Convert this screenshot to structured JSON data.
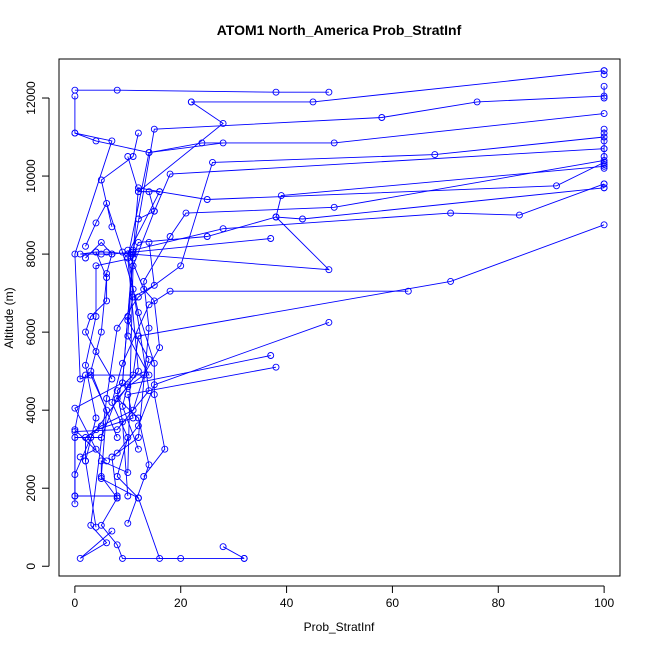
{
  "chart_data": {
    "type": "line",
    "title": "ATOM1 North_America Prob_StratInf",
    "xlabel": "Prob_StratInf",
    "ylabel": "Altitude (m)",
    "xlim": [
      -3,
      103
    ],
    "ylim": [
      -250,
      13000
    ],
    "xticks": [
      0,
      20,
      40,
      60,
      80,
      100
    ],
    "yticks": [
      0,
      2000,
      4000,
      6000,
      8000,
      10000,
      12000
    ],
    "grid": false,
    "color": "#0000ff",
    "series": [
      {
        "points": [
          [
            0,
            12200
          ],
          [
            8,
            12200
          ],
          [
            38,
            12150
          ],
          [
            48,
            12150
          ]
        ]
      },
      {
        "points": [
          [
            0,
            12050
          ],
          [
            0,
            11100
          ],
          [
            7,
            10900
          ],
          [
            0,
            8000
          ],
          [
            1,
            4800
          ],
          [
            3,
            4900
          ],
          [
            6,
            4000
          ],
          [
            5,
            2300
          ],
          [
            8,
            1750
          ],
          [
            5,
            1050
          ],
          [
            8,
            550
          ],
          [
            9,
            200
          ],
          [
            20,
            200
          ]
        ]
      },
      {
        "points": [
          [
            22,
            11900
          ],
          [
            28,
            11350
          ],
          [
            12,
            9600
          ],
          [
            16,
            9600
          ],
          [
            10,
            8000
          ],
          [
            14,
            4500
          ],
          [
            8,
            3500
          ],
          [
            0,
            3450
          ],
          [
            0,
            1800
          ],
          [
            8,
            1800
          ]
        ]
      },
      {
        "points": [
          [
            100,
            12700
          ],
          [
            45,
            11900
          ],
          [
            22,
            11900
          ]
        ]
      },
      {
        "points": [
          [
            100,
            12050
          ],
          [
            76,
            11900
          ],
          [
            58,
            11500
          ],
          [
            15,
            11200
          ],
          [
            11,
            8050
          ],
          [
            10,
            5900
          ],
          [
            14,
            4900
          ],
          [
            2,
            4900
          ],
          [
            0,
            3500
          ],
          [
            6,
            2700
          ]
        ]
      },
      {
        "points": [
          [
            100,
            11600
          ],
          [
            49,
            10850
          ],
          [
            24,
            10850
          ],
          [
            14,
            10600
          ],
          [
            10,
            7900
          ],
          [
            12,
            5000
          ],
          [
            3,
            3300
          ],
          [
            0,
            2350
          ],
          [
            0,
            1600
          ]
        ]
      },
      {
        "points": [
          [
            100,
            11000
          ],
          [
            68,
            10550
          ],
          [
            26,
            10350
          ],
          [
            20,
            7700
          ],
          [
            12,
            6900
          ],
          [
            8,
            6100
          ],
          [
            6,
            4300
          ],
          [
            3,
            1050
          ],
          [
            6,
            600
          ],
          [
            1,
            200
          ],
          [
            7,
            900
          ]
        ]
      },
      {
        "points": [
          [
            100,
            10700
          ],
          [
            18,
            10050
          ],
          [
            15,
            9100
          ],
          [
            11,
            7700
          ],
          [
            10,
            2400
          ],
          [
            5,
            2700
          ],
          [
            5,
            2250
          ],
          [
            12,
            1750
          ],
          [
            16,
            200
          ],
          [
            32,
            200
          ]
        ]
      },
      {
        "points": [
          [
            100,
            10350
          ],
          [
            91,
            9750
          ],
          [
            25,
            9400
          ],
          [
            16,
            9600
          ],
          [
            12,
            9700
          ],
          [
            11,
            8000
          ],
          [
            10,
            6400
          ],
          [
            9,
            4700
          ],
          [
            0,
            4050
          ],
          [
            4,
            3000
          ],
          [
            1,
            2800
          ]
        ]
      },
      {
        "points": [
          [
            100,
            10400
          ],
          [
            49,
            9200
          ],
          [
            21,
            9050
          ],
          [
            18,
            8450
          ],
          [
            13,
            7300
          ],
          [
            14,
            6100
          ],
          [
            12,
            3300
          ],
          [
            7,
            2800
          ],
          [
            8,
            1750
          ]
        ]
      },
      {
        "points": [
          [
            100,
            9800
          ],
          [
            84,
            9000
          ],
          [
            71,
            9050
          ],
          [
            28,
            8650
          ],
          [
            11,
            8100
          ],
          [
            9,
            4700
          ],
          [
            5,
            3300
          ],
          [
            0,
            3300
          ],
          [
            0,
            1800
          ]
        ]
      },
      {
        "points": [
          [
            100,
            8750
          ],
          [
            71,
            7300
          ],
          [
            12,
            5900
          ],
          [
            11,
            4900
          ],
          [
            8,
            4500
          ],
          [
            9,
            3700
          ],
          [
            10,
            1800
          ]
        ]
      },
      {
        "points": [
          [
            100,
            10250
          ],
          [
            39,
            9500
          ],
          [
            38,
            8950
          ],
          [
            25,
            8450
          ],
          [
            12,
            8300
          ],
          [
            11,
            7900
          ],
          [
            4,
            7700
          ],
          [
            4,
            6400
          ],
          [
            2,
            5150
          ],
          [
            4,
            3800
          ],
          [
            2,
            2700
          ],
          [
            4,
            1000
          ]
        ]
      },
      {
        "points": [
          [
            100,
            9700
          ],
          [
            43,
            8900
          ],
          [
            38,
            8950
          ],
          [
            48,
            7600
          ],
          [
            6,
            8050
          ],
          [
            4,
            8050
          ],
          [
            6,
            7400
          ],
          [
            5,
            6000
          ],
          [
            3,
            5000
          ],
          [
            8,
            3300
          ]
        ]
      },
      {
        "points": [
          [
            63,
            7050
          ],
          [
            18,
            7050
          ],
          [
            14,
            6700
          ],
          [
            9,
            5200
          ],
          [
            7,
            4200
          ],
          [
            10,
            3300
          ],
          [
            8,
            2300
          ],
          [
            12,
            1750
          ]
        ]
      },
      {
        "points": [
          [
            48,
            6250
          ],
          [
            15,
            4650
          ],
          [
            12,
            3600
          ],
          [
            8,
            2900
          ]
        ]
      },
      {
        "points": [
          [
            38,
            5100
          ],
          [
            10,
            4400
          ],
          [
            11,
            3800
          ],
          [
            4,
            3500
          ]
        ]
      },
      {
        "points": [
          [
            37,
            5400
          ],
          [
            10,
            4650
          ],
          [
            9,
            4100
          ],
          [
            12,
            3000
          ]
        ]
      },
      {
        "points": [
          [
            37,
            8400
          ],
          [
            11,
            8050
          ],
          [
            7,
            8000
          ],
          [
            5,
            8000
          ],
          [
            1,
            8000
          ],
          [
            4,
            8050
          ]
        ]
      },
      {
        "points": [
          [
            28,
            500
          ],
          [
            32,
            200
          ]
        ]
      },
      {
        "points": [
          [
            10,
            10500
          ],
          [
            12,
            9600
          ],
          [
            14,
            9600
          ],
          [
            15,
            9100
          ],
          [
            12,
            8900
          ]
        ]
      },
      {
        "points": [
          [
            2,
            7900
          ],
          [
            5,
            8300
          ],
          [
            7,
            8000
          ],
          [
            6,
            7500
          ],
          [
            6,
            6800
          ],
          [
            3,
            6400
          ],
          [
            2,
            6000
          ],
          [
            4,
            5500
          ],
          [
            7,
            4800
          ]
        ]
      },
      {
        "points": [
          [
            2,
            8200
          ],
          [
            4,
            8800
          ],
          [
            6,
            9300
          ],
          [
            9,
            8050
          ],
          [
            11,
            7100
          ],
          [
            12,
            6500
          ],
          [
            15,
            5200
          ],
          [
            15,
            4400
          ],
          [
            17,
            3000
          ],
          [
            13,
            2300
          ]
        ]
      },
      {
        "points": [
          [
            10,
            8100
          ],
          [
            13,
            7100
          ],
          [
            15,
            6800
          ],
          [
            16,
            5600
          ],
          [
            13,
            4900
          ],
          [
            10,
            4600
          ],
          [
            8,
            4300
          ],
          [
            12,
            3800
          ],
          [
            14,
            2600
          ],
          [
            10,
            1100
          ]
        ]
      },
      {
        "points": [
          [
            7,
            8700
          ],
          [
            5,
            9900
          ],
          [
            11,
            10500
          ],
          [
            12,
            11100
          ]
        ]
      },
      {
        "points": [
          [
            14,
            8300
          ],
          [
            15,
            7200
          ],
          [
            11,
            6900
          ],
          [
            10,
            6300
          ],
          [
            14,
            5300
          ],
          [
            11,
            4000
          ],
          [
            5,
            3600
          ],
          [
            2,
            3300
          ],
          [
            2,
            2700
          ]
        ]
      },
      {
        "points": [
          [
            0,
            11100
          ],
          [
            4,
            10900
          ],
          [
            14,
            10600
          ],
          [
            28,
            10850
          ]
        ]
      },
      {
        "points": [
          [
            100,
            11100
          ],
          [
            100,
            11200
          ],
          [
            100,
            10900
          ],
          [
            100,
            10700
          ],
          [
            100,
            10500
          ],
          [
            100,
            10300
          ],
          [
            100,
            10200
          ]
        ]
      },
      {
        "points": [
          [
            100,
            12700
          ],
          [
            100,
            12600
          ]
        ]
      },
      {
        "points": [
          [
            100,
            12300
          ],
          [
            100,
            12000
          ]
        ]
      },
      {
        "points": [
          [
            100,
            9800
          ],
          [
            100,
            9700
          ]
        ]
      }
    ]
  }
}
